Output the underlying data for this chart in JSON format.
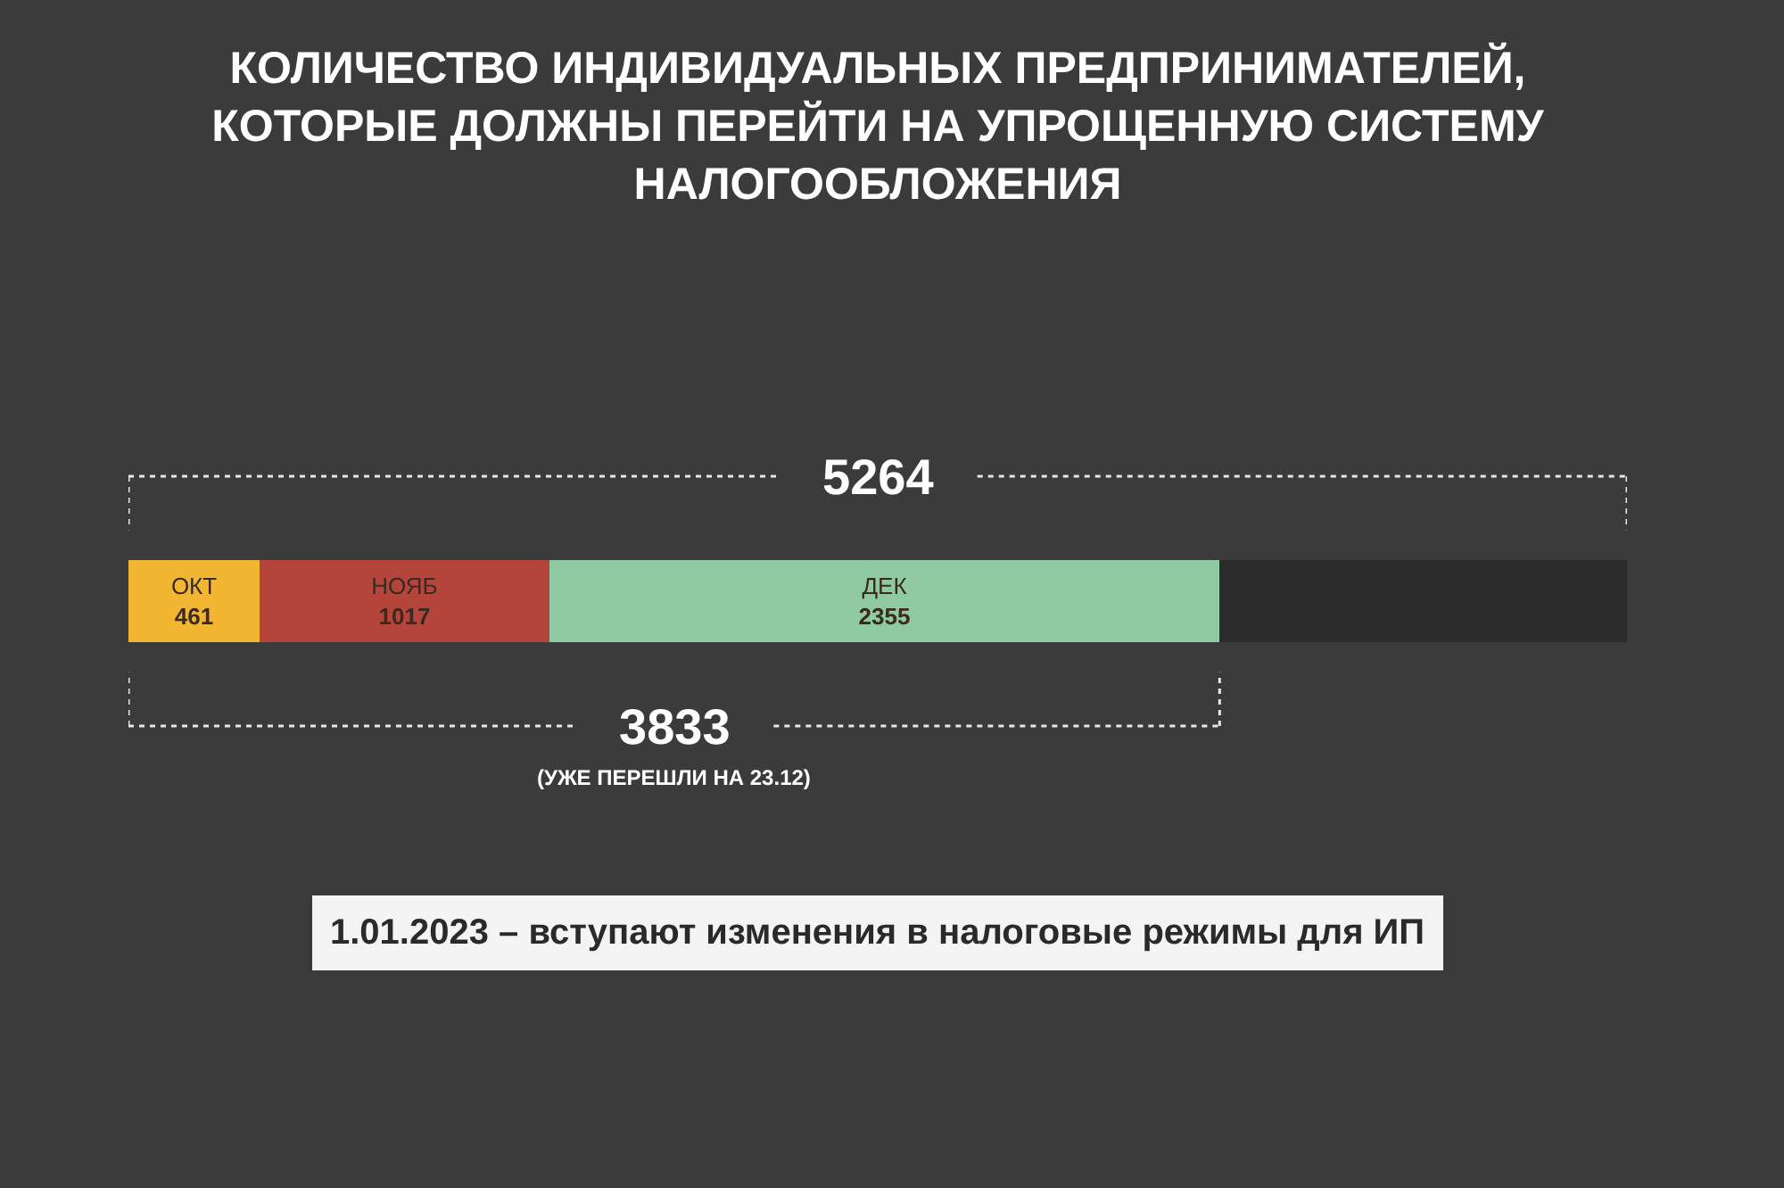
{
  "chart_data": {
    "type": "bar",
    "orientation": "horizontal",
    "stacked": true,
    "title": "КОЛИЧЕСТВО ИНДИВИДУАЛЬНЫХ ПРЕДПРИНИМАТЕЛЕЙ,\nКОТОРЫЕ ДОЛЖНЫ ПЕРЕЙТИ НА УПРОЩЕННУЮ СИСТЕМУ\nНАЛОГООБЛОЖЕНИЯ",
    "categories": [
      null
    ],
    "xlim": [
      0,
      5264
    ],
    "tick_labels": false,
    "legend": false,
    "series": [
      {
        "name": "ОКТ",
        "color": "#f2b632",
        "values": [
          461
        ],
        "value_labels": [
          "461"
        ]
      },
      {
        "name": "НОЯБ",
        "color": "#b5443b",
        "values": [
          1017
        ],
        "value_labels": [
          "1017"
        ]
      },
      {
        "name": "ДЕК",
        "color": "#8fcaa2",
        "values": [
          2355
        ],
        "value_labels": [
          "2355"
        ]
      },
      {
        "color": "#2c2c2c",
        "values": [
          1431
        ],
        "value_labels": [
          null
        ]
      }
    ],
    "annotations": [
      "5264",
      "3833",
      "(УЖЕ ПЕРЕШЛИ НА 23.12)",
      "1.01.2023 – вступают изменения в налоговые режимы для ИП"
    ]
  }
}
